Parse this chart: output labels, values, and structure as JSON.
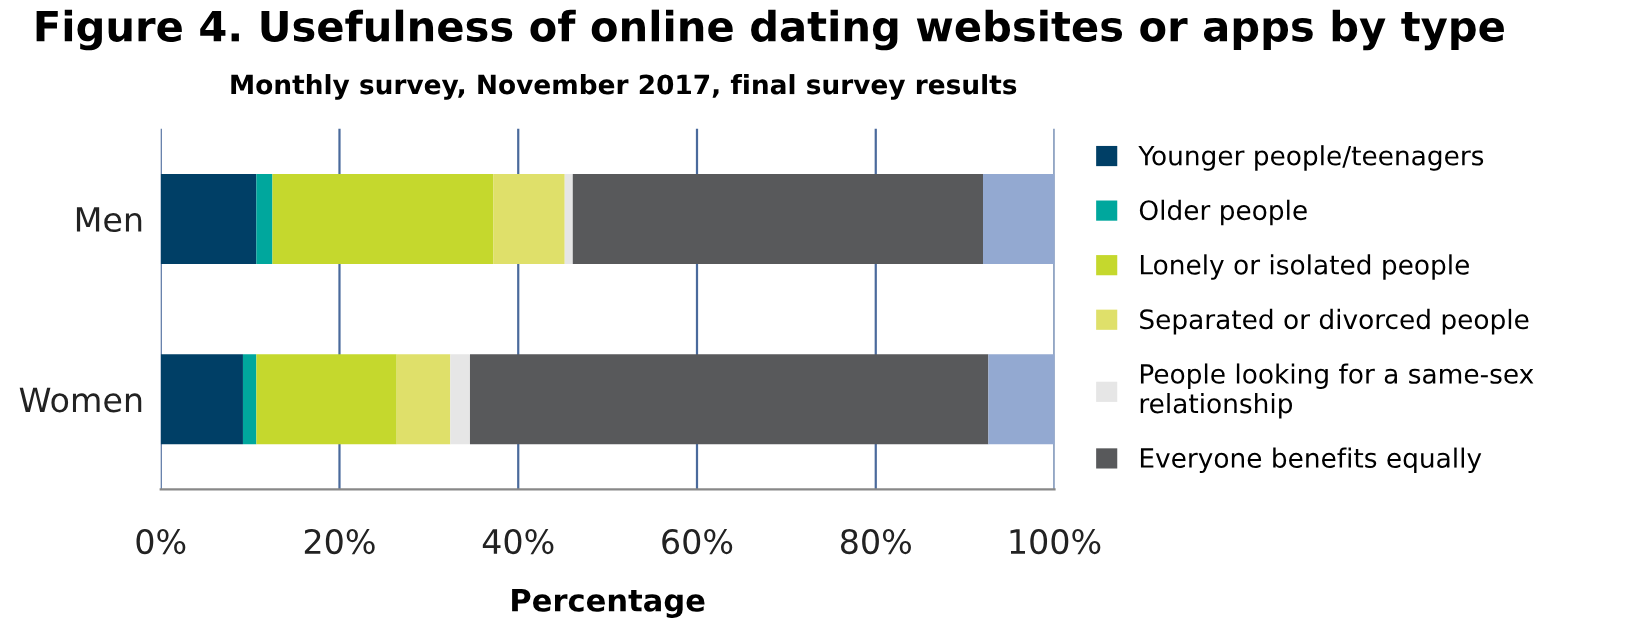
{
  "chart_data": {
    "type": "bar",
    "orientation": "horizontal",
    "stacked": true,
    "title": "Figure 4. Usefulness of online dating websites or apps by type",
    "subtitle": "Monthly survey, November 2017, final survey results",
    "xlabel": "Percentage",
    "categories": [
      "Men",
      "Women"
    ],
    "series": [
      {
        "name": "Younger people/teenagers",
        "color": "#003f66",
        "values": [
          10.7,
          9.2
        ]
      },
      {
        "name": "Older people",
        "color": "#00a79d",
        "values": [
          1.8,
          1.5
        ]
      },
      {
        "name": "Lonely or isolated people",
        "color": "#c5d82d",
        "values": [
          24.7,
          15.7
        ]
      },
      {
        "name": "Separated or divorced people",
        "color": "#dfe06a",
        "values": [
          8.0,
          6.0
        ]
      },
      {
        "name": "People looking for a same-sex\nrelationship",
        "color": "#e6e6e6",
        "values": [
          0.9,
          2.2
        ]
      },
      {
        "name": "Everyone benefits equally",
        "color": "#58595b",
        "values": [
          45.9,
          58.0
        ]
      },
      {
        "color": "#93a9d1",
        "values": [
          8.0,
          7.4
        ]
      }
    ],
    "xlim": [
      0,
      100
    ],
    "xticks": [
      {
        "value": 0,
        "label": "0%"
      },
      {
        "value": 20,
        "label": "20%"
      },
      {
        "value": 40,
        "label": "40%"
      },
      {
        "value": 60,
        "label": "60%"
      },
      {
        "value": 80,
        "label": "80%"
      },
      {
        "value": 100,
        "label": "100%"
      }
    ],
    "grid": "x",
    "legend": "right"
  }
}
